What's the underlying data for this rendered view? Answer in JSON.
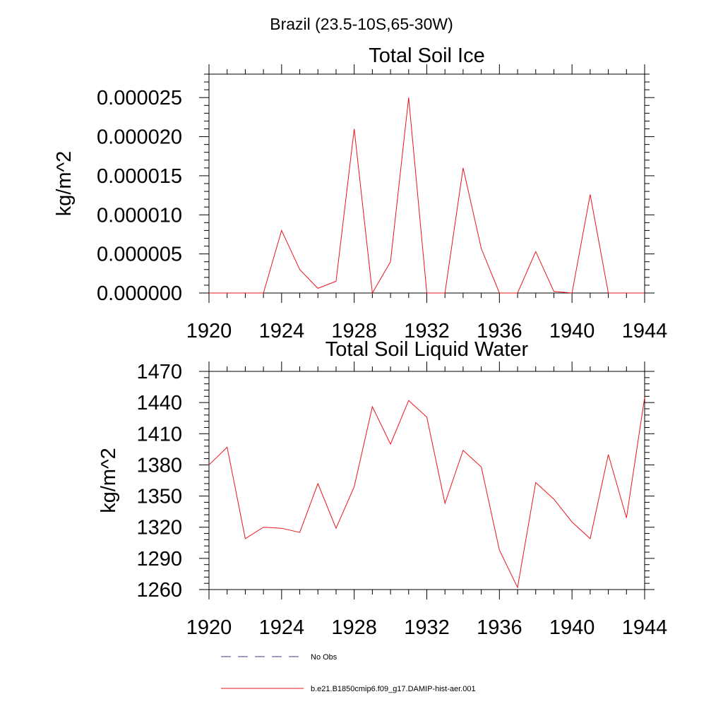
{
  "figure": {
    "title": "Brazil (23.5-10S,65-30W)",
    "legend": [
      {
        "label": "No Obs",
        "color": "#3b3b8f",
        "style": "dashed"
      },
      {
        "label": "b.e21.B1850cmip6.f09_g17.DAMIP-hist-aer.001",
        "color": "#e8161b",
        "style": "solid"
      }
    ]
  },
  "chart_data": [
    {
      "type": "line",
      "title": "Total Soil Ice",
      "xlabel": "",
      "ylabel": "kg/m^2",
      "xlim": [
        1920,
        1944
      ],
      "ylim": [
        0,
        2.8e-05
      ],
      "xticks": [
        1920,
        1924,
        1928,
        1932,
        1936,
        1940,
        1944
      ],
      "yticks": [
        0,
        5e-06,
        1e-05,
        1.5e-05,
        2e-05,
        2.5e-05
      ],
      "ytick_labels": [
        "0.000000",
        "0.000005",
        "0.000010",
        "0.000015",
        "0.000020",
        "0.000025"
      ],
      "grid": false,
      "x": [
        1920,
        1921,
        1922,
        1923,
        1924,
        1925,
        1926,
        1927,
        1928,
        1929,
        1930,
        1931,
        1932,
        1933,
        1934,
        1935,
        1936,
        1937,
        1938,
        1939,
        1940,
        1941,
        1942,
        1943,
        1944
      ],
      "series": [
        {
          "name": "b.e21.B1850cmip6.f09_g17.DAMIP-hist-aer.001",
          "color": "#e8161b",
          "values": [
            0,
            0,
            0,
            0,
            8e-06,
            3e-06,
            6e-07,
            1.5e-06,
            2.1e-05,
            0,
            4e-06,
            2.5e-05,
            0,
            0,
            1.6e-05,
            5.7e-06,
            0,
            0,
            5.3e-06,
            2e-07,
            0,
            1.26e-05,
            0,
            0,
            0
          ]
        }
      ]
    },
    {
      "type": "line",
      "title": "Total Soil Liquid Water",
      "xlabel": "",
      "ylabel": "kg/m^2",
      "xlim": [
        1920,
        1944
      ],
      "ylim": [
        1260,
        1470
      ],
      "xticks": [
        1920,
        1924,
        1928,
        1932,
        1936,
        1940,
        1944
      ],
      "yticks": [
        1260,
        1290,
        1320,
        1350,
        1380,
        1410,
        1440,
        1470
      ],
      "ytick_labels": [
        "1260",
        "1290",
        "1320",
        "1350",
        "1380",
        "1410",
        "1440",
        "1470"
      ],
      "grid": false,
      "x": [
        1920,
        1921,
        1922,
        1923,
        1924,
        1925,
        1926,
        1927,
        1928,
        1929,
        1930,
        1931,
        1932,
        1933,
        1934,
        1935,
        1936,
        1937,
        1938,
        1939,
        1940,
        1941,
        1942,
        1943,
        1944
      ],
      "series": [
        {
          "name": "b.e21.B1850cmip6.f09_g17.DAMIP-hist-aer.001",
          "color": "#e8161b",
          "values": [
            1380,
            1397,
            1309,
            1320,
            1319,
            1315,
            1362,
            1319,
            1359,
            1436,
            1400,
            1442,
            1426,
            1343,
            1394,
            1378,
            1298,
            1262,
            1363,
            1347,
            1325,
            1309,
            1390,
            1329,
            1445
          ]
        }
      ]
    }
  ]
}
